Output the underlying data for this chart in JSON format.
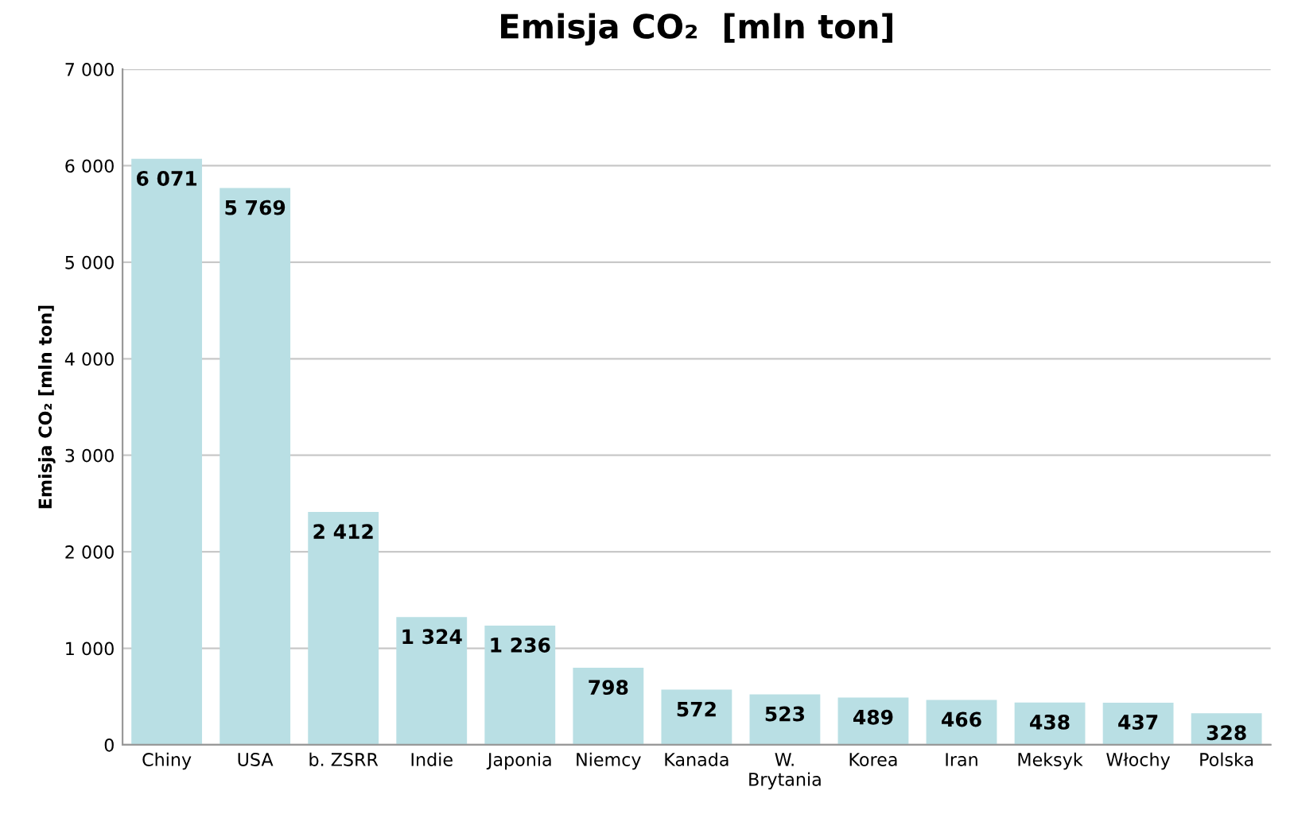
{
  "chart_data": {
    "type": "bar",
    "title": "Emisja CO₂  [mln ton]",
    "ylabel": "Emisja CO₂ [mln ton]",
    "categories": [
      "Chiny",
      "USA",
      "b. ZSRR",
      "Indie",
      "Japonia",
      "Niemcy",
      "Kanada",
      "W.\nBrytania",
      "Korea",
      "Iran",
      "Meksyk",
      "Włochy",
      "Polska"
    ],
    "values": [
      6071,
      5769,
      2412,
      1324,
      1236,
      798,
      572,
      523,
      489,
      466,
      438,
      437,
      328
    ],
    "value_labels": [
      "6 071",
      "5 769",
      "2 412",
      "1 324",
      "1 236",
      "798",
      "572",
      "523",
      "489",
      "466",
      "438",
      "437",
      "328"
    ],
    "color": "#b9dfe4",
    "ylim": [
      0,
      7000
    ],
    "yticks": [
      {
        "value": 0,
        "label": "0"
      },
      {
        "value": 1000,
        "label": "1 000"
      },
      {
        "value": 2000,
        "label": "2 000"
      },
      {
        "value": 3000,
        "label": "3 000"
      },
      {
        "value": 4000,
        "label": "4 000"
      },
      {
        "value": 5000,
        "label": "5 000"
      },
      {
        "value": 6000,
        "label": "6 000"
      },
      {
        "value": 7000,
        "label": "7 000"
      }
    ],
    "grid": "y"
  }
}
